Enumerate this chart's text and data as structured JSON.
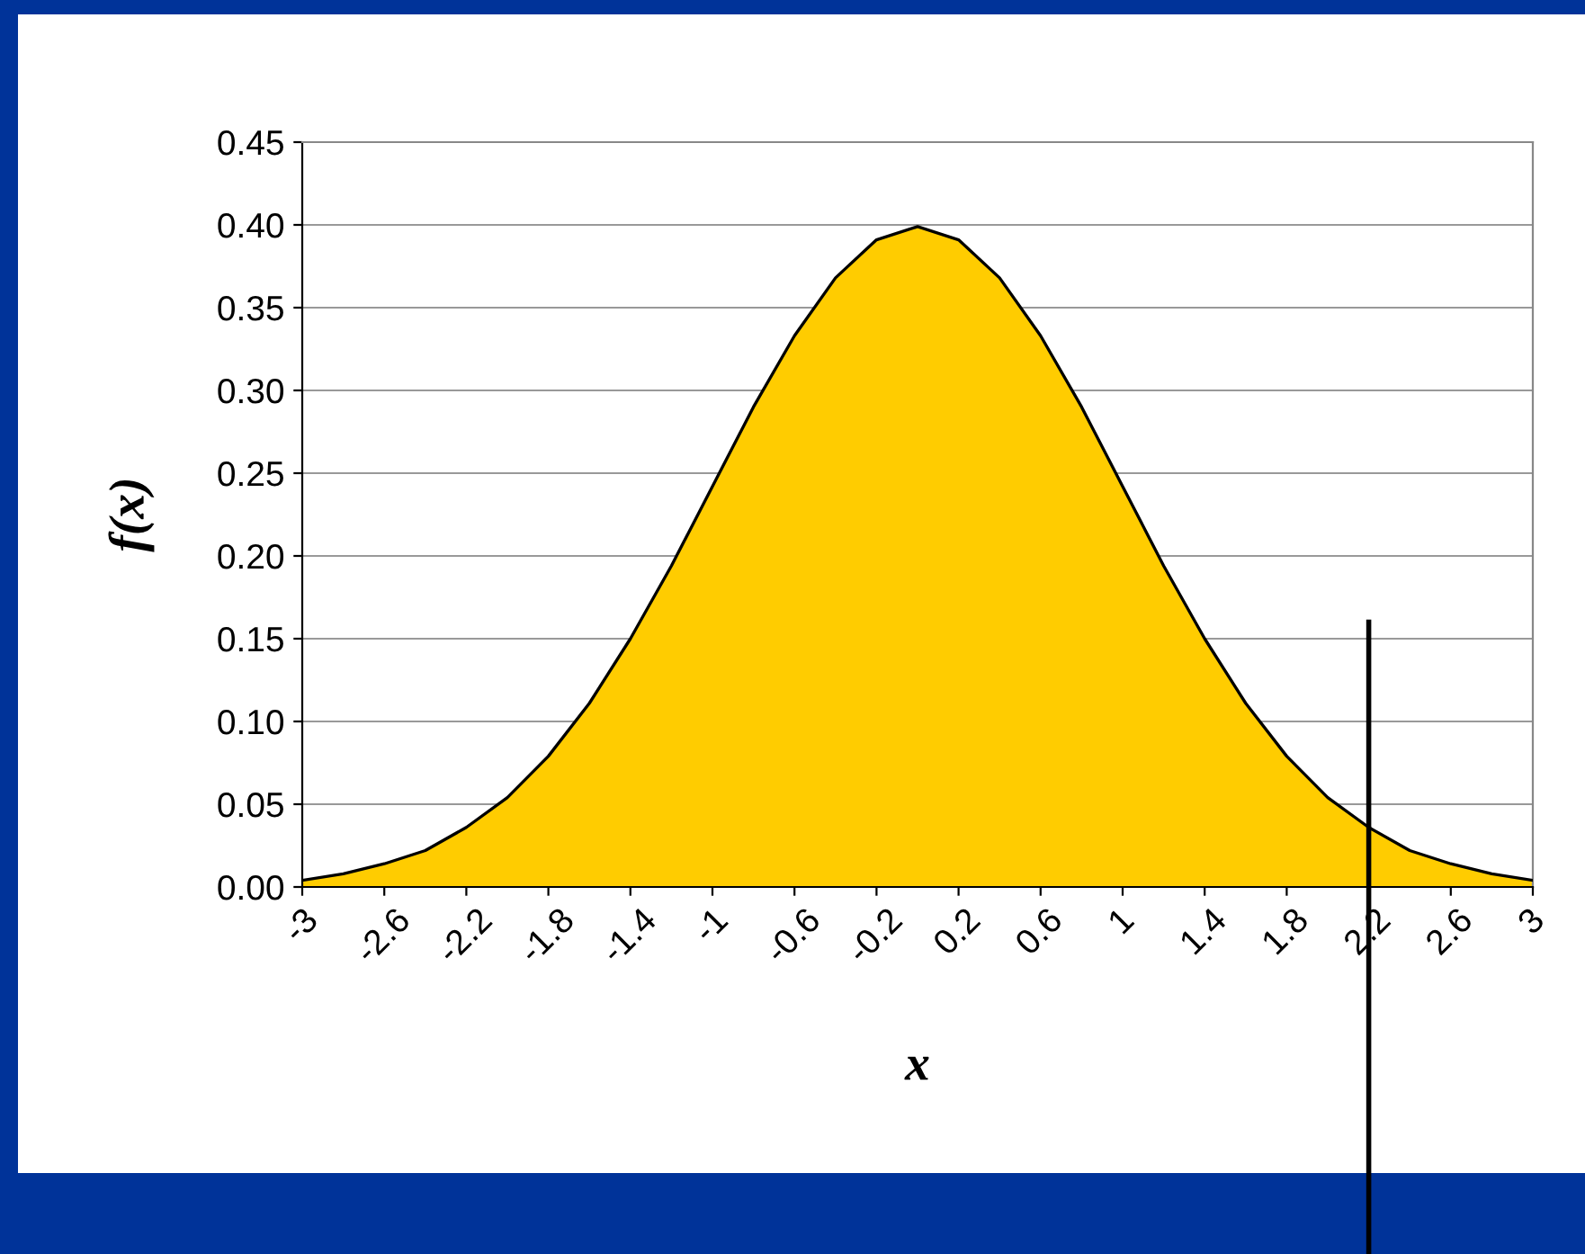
{
  "chart_data": {
    "type": "area",
    "xlabel": "x",
    "ylabel": "f(x)",
    "series": [
      {
        "color": "#ffcc00",
        "x": [
          -3,
          -2.8,
          -2.6,
          -2.4,
          -2.2,
          -2,
          -1.8,
          -1.6,
          -1.4,
          -1.2,
          -1,
          -0.8,
          -0.6,
          -0.4,
          -0.2,
          0,
          0.2,
          0.4,
          0.6,
          0.8,
          1,
          1.2,
          1.4,
          1.6,
          1.8,
          2,
          2.2,
          2.4,
          2.6,
          2.8,
          3
        ],
        "values": [
          0.004,
          0.008,
          0.014,
          0.022,
          0.036,
          0.054,
          0.079,
          0.111,
          0.15,
          0.194,
          0.242,
          0.29,
          0.333,
          0.368,
          0.391,
          0.399,
          0.391,
          0.368,
          0.333,
          0.29,
          0.242,
          0.194,
          0.15,
          0.111,
          0.079,
          0.054,
          0.036,
          0.022,
          0.014,
          0.008,
          0.004
        ]
      },
      {
        "type": "line",
        "color": "#000000",
        "x": [
          2.2,
          2.2
        ],
        "values": [
          0,
          0.16
        ]
      }
    ],
    "xlim": [
      -3,
      3
    ],
    "xticks": [
      -3,
      -2.6,
      -2.2,
      -1.8,
      -1.4,
      -1,
      -0.6,
      -0.2,
      0.2,
      0.6,
      1,
      1.4,
      1.8,
      2.2,
      2.6,
      3
    ],
    "ylim": [
      0,
      0.45
    ],
    "yticks": [
      {
        "value": 0,
        "label": "0.00"
      },
      {
        "value": 0.05,
        "label": "0.05"
      },
      {
        "value": 0.1,
        "label": "0.10"
      },
      {
        "value": 0.15,
        "label": "0.15"
      },
      {
        "value": 0.2,
        "label": "0.20"
      },
      {
        "value": 0.25,
        "label": "0.25"
      },
      {
        "value": 0.3,
        "label": "0.30"
      },
      {
        "value": 0.35,
        "label": "0.35"
      },
      {
        "value": 0.4,
        "label": "0.40"
      },
      {
        "value": 0.45,
        "label": "0.45"
      }
    ],
    "grid": "y",
    "legend": false
  }
}
